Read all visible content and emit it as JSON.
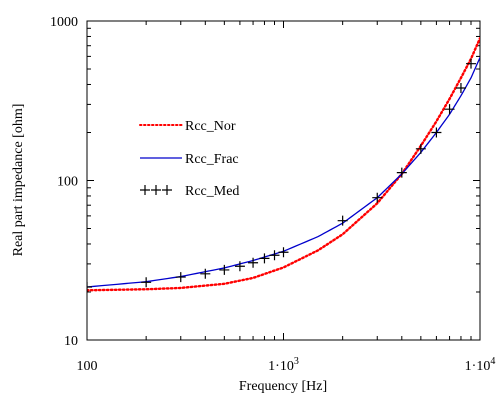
{
  "chart_data": {
    "type": "line",
    "title": "",
    "xlabel": "Frequency [Hz]",
    "ylabel": "Real part impedance [ohm]",
    "xscale": "log",
    "yscale": "log",
    "xlim": [
      100,
      10000
    ],
    "ylim": [
      10,
      1000
    ],
    "grid": false,
    "legend_position": "top-left",
    "x_ticks": [
      {
        "value": 100,
        "label": "100"
      },
      {
        "value": 1000,
        "label": "1·10",
        "exp": "3"
      },
      {
        "value": 10000,
        "label": "1·10",
        "exp": "4"
      }
    ],
    "y_ticks": [
      {
        "value": 10,
        "label": "10"
      },
      {
        "value": 100,
        "label": "100"
      },
      {
        "value": 1000,
        "label": "1000"
      }
    ],
    "series": [
      {
        "name": "Rcc_Nor",
        "style": "dotted",
        "color": "#ff0000",
        "x": [
          100,
          200,
          300,
          500,
          700,
          1000,
          1500,
          2000,
          3000,
          4000,
          5000,
          6000,
          7000,
          8000,
          9000,
          10000
        ],
        "y": [
          20.5,
          20.8,
          21.2,
          22.5,
          24.5,
          28.5,
          36.5,
          46,
          72,
          110,
          165,
          235,
          325,
          440,
          580,
          780
        ]
      },
      {
        "name": "Rcc_Frac",
        "style": "solid",
        "color": "#0000cc",
        "x": [
          100,
          200,
          300,
          500,
          700,
          1000,
          1500,
          2000,
          3000,
          4000,
          5000,
          6000,
          7000,
          8000,
          9000,
          10000
        ],
        "y": [
          21.5,
          23.2,
          25.0,
          28.3,
          31.5,
          36.0,
          44.5,
          54,
          78,
          110,
          150,
          200,
          260,
          340,
          440,
          590
        ]
      },
      {
        "name": "Rcc_Med",
        "style": "markers",
        "marker": "+",
        "color": "#000000",
        "x": [
          100,
          200,
          300,
          400,
          500,
          600,
          700,
          800,
          900,
          1000,
          2000,
          3000,
          4000,
          5000,
          6000,
          7000,
          8000,
          9000
        ],
        "y": [
          21.5,
          23,
          24.8,
          26,
          27.5,
          29,
          30.5,
          32.5,
          34,
          35.5,
          56,
          78,
          112,
          158,
          200,
          280,
          380,
          540
        ]
      }
    ]
  },
  "colors": {
    "background": "#ffffff",
    "axes": "#000000"
  }
}
